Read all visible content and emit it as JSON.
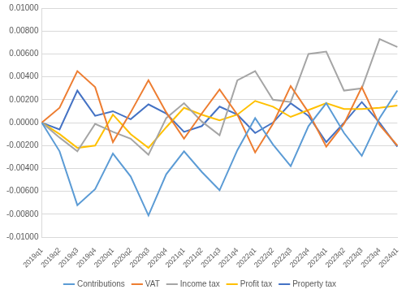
{
  "chart_data": {
    "type": "line",
    "categories": [
      "2019q1",
      "2019q2",
      "2019q3",
      "2019q4",
      "2020q1",
      "2020q2",
      "2020q3",
      "2020q4",
      "2021q1",
      "2021q2",
      "2021q3",
      "2021q4",
      "2022q1",
      "2022q2",
      "2022q3",
      "2022q4",
      "2023q1",
      "2023q2",
      "2023q3",
      "2023q4",
      "2024q1"
    ],
    "series": [
      {
        "name": "Contributions",
        "color": "#5b9bd5",
        "values": [
          0,
          -0.0025,
          -0.0072,
          -0.0058,
          -0.0027,
          -0.0047,
          -0.0081,
          -0.0045,
          -0.0025,
          -0.0043,
          -0.0059,
          -0.0024,
          0.0004,
          -0.0019,
          -0.0038,
          -0.0003,
          0.0017,
          -0.0009,
          -0.0029,
          0.0004,
          0.0028
        ]
      },
      {
        "name": "VAT",
        "color": "#ed7d31",
        "values": [
          0,
          0.0013,
          0.0045,
          0.0031,
          -0.0017,
          0.0009,
          0.0037,
          0.0009,
          -0.0014,
          0.0008,
          0.0029,
          0.0007,
          -0.0026,
          -0.0001,
          0.0032,
          0.0009,
          -0.0021,
          -0.0001,
          0.0031,
          -0.0002,
          -0.002
        ]
      },
      {
        "name": "Income tax",
        "color": "#a5a5a5",
        "values": [
          0,
          -0.0013,
          -0.0025,
          -0.0001,
          -0.0008,
          -0.0014,
          -0.0028,
          0.0004,
          0.0017,
          0.0001,
          -0.0011,
          0.0037,
          0.0045,
          0.002,
          0.0018,
          0.006,
          0.0062,
          0.0028,
          0.003,
          0.0073,
          0.0066
        ]
      },
      {
        "name": "Profit tax",
        "color": "#ffc000",
        "values": [
          0,
          -0.001,
          -0.0022,
          -0.002,
          0.0007,
          -0.001,
          -0.0022,
          -0.0004,
          0.0013,
          0.0007,
          0.0002,
          0.0007,
          0.0019,
          0.0014,
          0.0005,
          0.0011,
          0.0017,
          0.0012,
          0.0012,
          0.0013,
          0.0015
        ]
      },
      {
        "name": "Property tax",
        "color": "#4472c4",
        "values": [
          0,
          -0.0006,
          0.0028,
          0.0006,
          0.001,
          0.0003,
          0.0016,
          0.0008,
          -0.0008,
          -0.0003,
          0.0014,
          0.0007,
          -0.0009,
          0,
          0.0017,
          0.0006,
          -0.0017,
          0,
          0.0018,
          0,
          -0.0021
        ]
      }
    ],
    "ylim": [
      -0.01,
      0.01
    ],
    "yticks": [
      {
        "value": -0.01,
        "label": "-0.01000"
      },
      {
        "value": -0.008,
        "label": "-0.00800"
      },
      {
        "value": -0.006,
        "label": "-0.00600"
      },
      {
        "value": -0.004,
        "label": "-0.00400"
      },
      {
        "value": -0.002,
        "label": "-0.00200"
      },
      {
        "value": 0,
        "label": "0.00000"
      },
      {
        "value": 0.002,
        "label": "0.00200"
      },
      {
        "value": 0.004,
        "label": "0.00400"
      },
      {
        "value": 0.006,
        "label": "0.00600"
      },
      {
        "value": 0.008,
        "label": "0.00800"
      },
      {
        "value": 0.01,
        "label": "0.01000"
      }
    ],
    "grid": true,
    "legend": "bottom"
  }
}
